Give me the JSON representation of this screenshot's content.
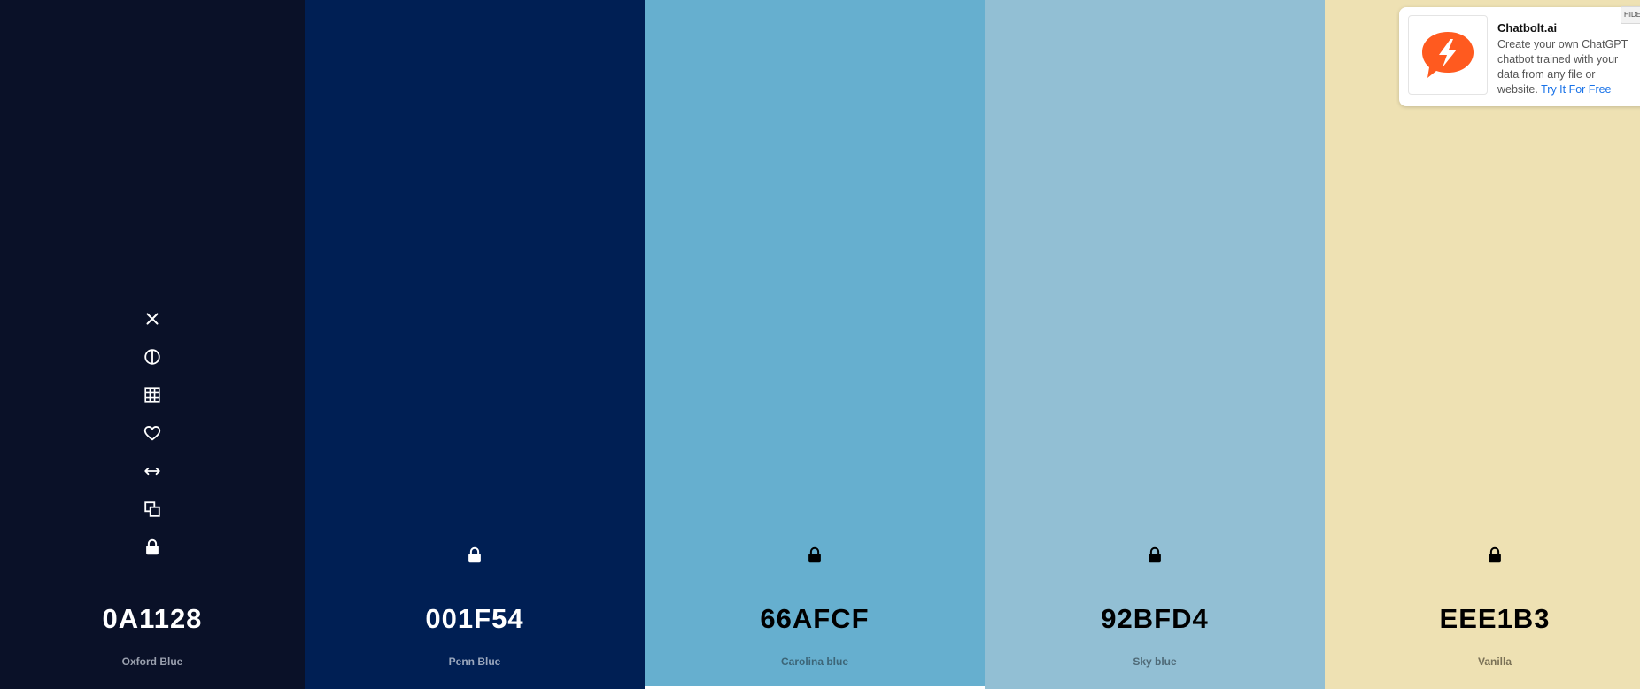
{
  "palette": {
    "swatches": [
      {
        "hex": "0A1128",
        "name": "Oxford Blue",
        "bg": "#0A1128",
        "fg": "#ffffff",
        "name_color": "#9aa0ae"
      },
      {
        "hex": "001F54",
        "name": "Penn Blue",
        "bg": "#001F54",
        "fg": "#ffffff",
        "name_color": "#9aa7bd"
      },
      {
        "hex": "66AFCF",
        "name": "Carolina blue",
        "bg": "#66AFCF",
        "fg": "#000000",
        "name_color": "#3c6577"
      },
      {
        "hex": "92BFD4",
        "name": "Sky blue",
        "bg": "#92BFD4",
        "fg": "#000000",
        "name_color": "#4f6a77"
      },
      {
        "hex": "EEE1B3",
        "name": "Vanilla",
        "bg": "#EEE1B3",
        "fg": "#000000",
        "name_color": "#7a7156"
      }
    ],
    "tool_icons": [
      "close-icon",
      "contrast-icon",
      "shades-grid-icon",
      "heart-icon",
      "drag-arrows-icon",
      "copy-icon",
      "lock-icon"
    ]
  },
  "ad": {
    "title": "Chatbolt.ai",
    "description": "Create your own ChatGPT chatbot trained with your data from any file or website.",
    "link_text": "Try It For Free",
    "hide_label": "HIDE",
    "brand_color": "#FF5A1F"
  }
}
